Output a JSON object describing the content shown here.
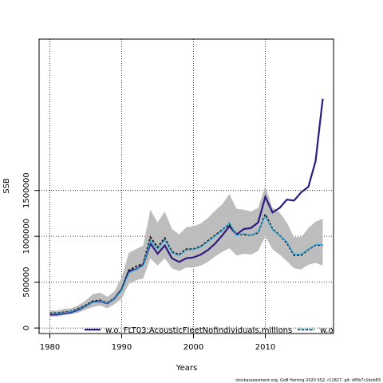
{
  "chart_data": {
    "type": "line",
    "xlabel": "Years",
    "ylabel": "SSB",
    "xlim": [
      1978.5,
      2019.5
    ],
    "ylim": [
      -60000,
      3150000
    ],
    "x_ticks": [
      1980,
      1990,
      2000,
      2010
    ],
    "y_ticks": [
      0,
      500000,
      1000000,
      1500000
    ],
    "y_tick_labels": [
      "0",
      "500000",
      "1000000",
      "1500000"
    ],
    "grid": true,
    "legend_position": "bottom",
    "x": [
      1980,
      1981,
      1982,
      1983,
      1984,
      1985,
      1986,
      1987,
      1988,
      1989,
      1990,
      1991,
      1992,
      1993,
      1994,
      1995,
      1996,
      1997,
      1998,
      1999,
      2000,
      2001,
      2002,
      2003,
      2004,
      2005,
      2006,
      2007,
      2008,
      2009,
      2010,
      2011,
      2012,
      2013,
      2014,
      2015,
      2016,
      2017,
      2018
    ],
    "band": {
      "upper": [
        190000,
        190000,
        210000,
        215000,
        250000,
        300000,
        370000,
        385000,
        340000,
        400000,
        550000,
        820000,
        860000,
        900000,
        1290000,
        1150000,
        1270000,
        1080000,
        1020000,
        1100000,
        1110000,
        1140000,
        1200000,
        1280000,
        1350000,
        1460000,
        1300000,
        1290000,
        1270000,
        1310000,
        1550000,
        1310000,
        1260000,
        1150000,
        990000,
        990000,
        1090000,
        1160000,
        1190000
      ],
      "lower": [
        125000,
        125000,
        140000,
        150000,
        170000,
        200000,
        230000,
        245000,
        215000,
        260000,
        320000,
        480000,
        520000,
        540000,
        760000,
        680000,
        760000,
        650000,
        620000,
        660000,
        660000,
        680000,
        720000,
        780000,
        830000,
        870000,
        790000,
        810000,
        800000,
        840000,
        1000000,
        860000,
        800000,
        730000,
        650000,
        640000,
        690000,
        710000,
        680000
      ]
    },
    "series": [
      {
        "name": "w.o. FLT03:AcousticFleetNofindividuals,millions",
        "color": "#2d1b80",
        "values": [
          145000,
          148000,
          160000,
          172000,
          200000,
          240000,
          285000,
          292000,
          268000,
          320000,
          420000,
          620000,
          640000,
          690000,
          920000,
          810000,
          900000,
          760000,
          720000,
          760000,
          770000,
          800000,
          850000,
          920000,
          1010000,
          1110000,
          1020000,
          1080000,
          1090000,
          1150000,
          1430000,
          1260000,
          1310000,
          1400000,
          1390000,
          1480000,
          1540000,
          1820000,
          2500000
        ]
      },
      {
        "name": "w.o.",
        "color": "#1a1a1a",
        "dashed": true,
        "values": [
          160000,
          162000,
          172000,
          182000,
          212000,
          248000,
          292000,
          302000,
          275000,
          322000,
          420000,
          630000,
          670000,
          700000,
          990000,
          880000,
          980000,
          830000,
          800000,
          860000,
          860000,
          890000,
          950000,
          1010000,
          1070000,
          1130000,
          1020000,
          1020000,
          1010000,
          1040000,
          1240000,
          1080000,
          1010000,
          930000,
          795000,
          795000,
          855000,
          905000,
          905000
        ]
      },
      {
        "color": "#29a9e0",
        "values": [
          155000,
          157000,
          168000,
          178000,
          205000,
          240000,
          282000,
          295000,
          270000,
          318000,
          410000,
          600000,
          640000,
          680000,
          950000,
          860000,
          960000,
          820000,
          790000,
          850000,
          855000,
          880000,
          940000,
          1000000,
          1060000,
          1150000,
          1010000,
          1030000,
          1010000,
          1050000,
          1220000,
          1070000,
          1010000,
          940000,
          805000,
          805000,
          860000,
          910000,
          910000
        ]
      }
    ]
  },
  "footer": "stockassessment.org, GoB Herring 2020 SS2, r11827, git: df0b7c1bcb83"
}
